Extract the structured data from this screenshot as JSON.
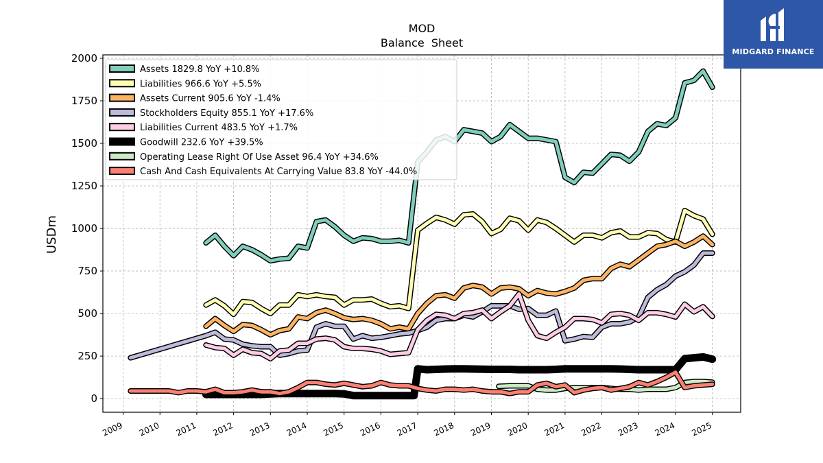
{
  "brand": {
    "name": "MIDGARD FINANCE",
    "color": "#2f57a8"
  },
  "chart_data": {
    "type": "line",
    "title": "MOD",
    "subtitle": "Balance  Sheet",
    "ylabel": "USDm",
    "xlabel": "",
    "ylim": [
      -80,
      2020
    ],
    "xlim": [
      2008.45,
      2025.77
    ],
    "yticks": [
      0,
      250,
      500,
      750,
      1000,
      1250,
      1500,
      1750,
      2000
    ],
    "ytick_labels": [
      "0",
      "250",
      "500",
      "750",
      "1000",
      "1250",
      "1500",
      "1750",
      "2000"
    ],
    "xticks": [
      2009,
      2010,
      2011,
      2012,
      2013,
      2014,
      2015,
      2016,
      2017,
      2018,
      2019,
      2020,
      2021,
      2022,
      2023,
      2024,
      2025
    ],
    "xtick_labels": [
      "2009",
      "2010",
      "2011",
      "2012",
      "2013",
      "2014",
      "2015",
      "2016",
      "2017",
      "2018",
      "2019",
      "2020",
      "2021",
      "2022",
      "2023",
      "2024",
      "2025"
    ],
    "grid": true,
    "legend_position": "top-left",
    "series": [
      {
        "name": "Assets  1829.8 YoY +10.8%",
        "color": "#7fcdbb",
        "width": 5,
        "x": [
          2011.25,
          2011.5,
          2011.75,
          2012.0,
          2012.25,
          2012.5,
          2012.75,
          2013.0,
          2013.25,
          2013.5,
          2013.75,
          2014.0,
          2014.25,
          2014.5,
          2014.75,
          2015.0,
          2015.25,
          2015.5,
          2015.75,
          2016.0,
          2016.25,
          2016.5,
          2016.75,
          2017.0,
          2017.25,
          2017.5,
          2017.75,
          2018.0,
          2018.25,
          2018.5,
          2018.75,
          2019.0,
          2019.25,
          2019.5,
          2019.75,
          2020.0,
          2020.25,
          2020.5,
          2020.75,
          2021.0,
          2021.25,
          2021.5,
          2021.75,
          2022.0,
          2022.25,
          2022.5,
          2022.75,
          2023.0,
          2023.25,
          2023.5,
          2023.75,
          2024.0,
          2024.25,
          2024.5,
          2024.75,
          2025.0
        ],
        "y": [
          915,
          960,
          895,
          840,
          895,
          875,
          845,
          810,
          820,
          825,
          895,
          885,
          1040,
          1050,
          1010,
          960,
          925,
          945,
          940,
          925,
          925,
          930,
          915,
          1390,
          1450,
          1520,
          1540,
          1510,
          1580,
          1570,
          1560,
          1510,
          1540,
          1610,
          1570,
          1530,
          1530,
          1520,
          1510,
          1300,
          1270,
          1330,
          1325,
          1380,
          1435,
          1430,
          1395,
          1450,
          1570,
          1615,
          1605,
          1650,
          1855,
          1870,
          1925,
          1830
        ]
      },
      {
        "name": "Liabilities  966.6 YoY +5.5%",
        "color": "#ffffb3",
        "width": 5,
        "x": [
          2011.25,
          2011.5,
          2011.75,
          2012.0,
          2012.25,
          2012.5,
          2012.75,
          2013.0,
          2013.25,
          2013.5,
          2013.75,
          2014.0,
          2014.25,
          2014.5,
          2014.75,
          2015.0,
          2015.25,
          2015.5,
          2015.75,
          2016.0,
          2016.25,
          2016.5,
          2016.75,
          2017.0,
          2017.25,
          2017.5,
          2017.75,
          2018.0,
          2018.25,
          2018.5,
          2018.75,
          2019.0,
          2019.25,
          2019.5,
          2019.75,
          2020.0,
          2020.25,
          2020.5,
          2020.75,
          2021.0,
          2021.25,
          2021.5,
          2021.75,
          2022.0,
          2022.25,
          2022.5,
          2022.75,
          2023.0,
          2023.25,
          2023.5,
          2023.75,
          2024.0,
          2024.25,
          2024.5,
          2024.75,
          2025.0
        ],
        "y": [
          550,
          580,
          545,
          495,
          570,
          565,
          530,
          500,
          550,
          550,
          610,
          600,
          610,
          600,
          595,
          550,
          580,
          580,
          585,
          560,
          540,
          545,
          530,
          990,
          1030,
          1065,
          1050,
          1025,
          1080,
          1085,
          1040,
          970,
          995,
          1060,
          1045,
          990,
          1050,
          1035,
          1000,
          960,
          920,
          960,
          960,
          945,
          975,
          985,
          950,
          950,
          975,
          970,
          935,
          920,
          1105,
          1075,
          1055,
          966
        ]
      },
      {
        "name": "Assets Current  905.6 YoY -1.4%",
        "color": "#fdb462",
        "width": 5,
        "x": [
          2011.25,
          2011.5,
          2011.75,
          2012.0,
          2012.25,
          2012.5,
          2012.75,
          2013.0,
          2013.25,
          2013.5,
          2013.75,
          2014.0,
          2014.25,
          2014.5,
          2014.75,
          2015.0,
          2015.25,
          2015.5,
          2015.75,
          2016.0,
          2016.25,
          2016.5,
          2016.75,
          2017.0,
          2017.25,
          2017.5,
          2017.75,
          2018.0,
          2018.25,
          2018.5,
          2018.75,
          2019.0,
          2019.25,
          2019.5,
          2019.75,
          2020.0,
          2020.25,
          2020.5,
          2020.75,
          2021.0,
          2021.25,
          2021.5,
          2021.75,
          2022.0,
          2022.25,
          2022.5,
          2022.75,
          2023.0,
          2023.25,
          2023.5,
          2023.75,
          2024.0,
          2024.25,
          2024.5,
          2024.75,
          2025.0
        ],
        "y": [
          425,
          470,
          430,
          395,
          435,
          430,
          405,
          375,
          400,
          410,
          480,
          470,
          505,
          520,
          500,
          475,
          465,
          470,
          460,
          440,
          410,
          420,
          410,
          500,
          560,
          605,
          610,
          590,
          650,
          665,
          655,
          615,
          650,
          655,
          645,
          605,
          635,
          620,
          615,
          630,
          650,
          695,
          705,
          705,
          765,
          790,
          775,
          815,
          855,
          895,
          905,
          925,
          895,
          920,
          955,
          905
        ]
      },
      {
        "name": "Stockholders Equity  855.1 YoY +17.6%",
        "color": "#bebada",
        "width": 5,
        "x": [
          2009.2,
          2011.25,
          2011.5,
          2011.75,
          2012.0,
          2012.25,
          2012.5,
          2012.75,
          2013.0,
          2013.25,
          2013.5,
          2013.75,
          2014.0,
          2014.25,
          2014.5,
          2014.75,
          2015.0,
          2015.25,
          2015.5,
          2015.75,
          2016.0,
          2016.25,
          2016.5,
          2016.75,
          2017.0,
          2017.25,
          2017.5,
          2017.75,
          2018.0,
          2018.25,
          2018.5,
          2018.75,
          2019.0,
          2019.25,
          2019.5,
          2019.75,
          2020.0,
          2020.25,
          2020.5,
          2020.75,
          2021.0,
          2021.25,
          2021.5,
          2021.75,
          2022.0,
          2022.25,
          2022.5,
          2022.75,
          2023.0,
          2023.25,
          2023.5,
          2023.75,
          2024.0,
          2024.25,
          2024.5,
          2024.75,
          2025.0
        ],
        "y": [
          240,
          370,
          390,
          350,
          345,
          320,
          310,
          305,
          305,
          255,
          265,
          280,
          285,
          420,
          440,
          425,
          425,
          350,
          370,
          355,
          360,
          370,
          380,
          385,
          400,
          420,
          460,
          470,
          470,
          490,
          480,
          510,
          545,
          545,
          545,
          525,
          530,
          490,
          490,
          515,
          340,
          350,
          365,
          360,
          420,
          440,
          440,
          450,
          480,
          595,
          640,
          670,
          720,
          745,
          785,
          855,
          855
        ]
      },
      {
        "name": "Liabilities Current  483.5 YoY +1.7%",
        "color": "#fccde5",
        "width": 5,
        "x": [
          2011.25,
          2011.5,
          2011.75,
          2012.0,
          2012.25,
          2012.5,
          2012.75,
          2013.0,
          2013.25,
          2013.5,
          2013.75,
          2014.0,
          2014.25,
          2014.5,
          2014.75,
          2015.0,
          2015.25,
          2015.5,
          2015.75,
          2016.0,
          2016.25,
          2016.5,
          2016.75,
          2017.0,
          2017.25,
          2017.5,
          2017.75,
          2018.0,
          2018.25,
          2018.5,
          2018.75,
          2019.0,
          2019.25,
          2019.5,
          2019.75,
          2020.0,
          2020.25,
          2020.5,
          2020.75,
          2021.0,
          2021.25,
          2021.5,
          2021.75,
          2022.0,
          2022.25,
          2022.5,
          2022.75,
          2023.0,
          2023.25,
          2023.5,
          2023.75,
          2024.0,
          2024.25,
          2024.5,
          2024.75,
          2025.0
        ],
        "y": [
          315,
          300,
          295,
          255,
          290,
          270,
          265,
          235,
          280,
          285,
          325,
          325,
          350,
          355,
          345,
          305,
          295,
          295,
          290,
          280,
          260,
          265,
          270,
          405,
          460,
          495,
          490,
          470,
          500,
          505,
          520,
          470,
          510,
          545,
          615,
          460,
          370,
          355,
          390,
          420,
          470,
          470,
          465,
          445,
          495,
          500,
          490,
          460,
          505,
          505,
          495,
          480,
          555,
          510,
          540,
          483
        ]
      },
      {
        "name": "Goodwill  232.6 YoY +39.5%",
        "color": "#000000",
        "width": 8,
        "x": [
          2011.25,
          2011.5,
          2011.75,
          2012.0,
          2012.25,
          2012.5,
          2012.75,
          2013.0,
          2013.25,
          2013.5,
          2013.75,
          2014.0,
          2014.25,
          2014.5,
          2014.75,
          2015.0,
          2015.25,
          2015.5,
          2015.75,
          2016.0,
          2016.25,
          2016.5,
          2016.75,
          2016.9,
          2017.0,
          2017.25,
          2017.5,
          2017.75,
          2018.0,
          2018.25,
          2018.5,
          2018.75,
          2019.0,
          2019.25,
          2019.5,
          2019.75,
          2020.0,
          2020.25,
          2020.5,
          2020.75,
          2021.0,
          2021.25,
          2021.5,
          2021.75,
          2022.0,
          2022.25,
          2022.5,
          2022.75,
          2023.0,
          2023.25,
          2023.5,
          2023.75,
          2024.0,
          2024.25,
          2024.5,
          2024.75,
          2025.0
        ],
        "y": [
          25,
          25,
          25,
          25,
          25,
          25,
          25,
          28,
          30,
          30,
          30,
          30,
          30,
          30,
          30,
          28,
          18,
          18,
          18,
          18,
          18,
          18,
          18,
          18,
          175,
          170,
          172,
          174,
          175,
          175,
          174,
          173,
          172,
          172,
          172,
          170,
          170,
          170,
          170,
          172,
          175,
          175,
          175,
          175,
          175,
          175,
          174,
          172,
          170,
          170,
          170,
          170,
          170,
          235,
          240,
          245,
          232
        ]
      },
      {
        "name": "Operating Lease Right Of Use Asset  96.4 YoY +34.6%",
        "color": "#ccebc5",
        "width": 5,
        "x": [
          2019.2,
          2019.5,
          2019.75,
          2020.0,
          2020.25,
          2020.5,
          2020.75,
          2021.0,
          2021.25,
          2021.5,
          2021.75,
          2022.0,
          2022.25,
          2022.5,
          2022.75,
          2023.0,
          2023.25,
          2023.5,
          2023.75,
          2024.0,
          2024.25,
          2024.5,
          2024.75,
          2025.0
        ],
        "y": [
          72,
          75,
          75,
          75,
          55,
          50,
          50,
          60,
          65,
          65,
          65,
          65,
          60,
          55,
          55,
          50,
          55,
          55,
          55,
          65,
          95,
          100,
          100,
          96
        ]
      },
      {
        "name": "Cash And Cash Equivalents At Carrying Value  83.8 YoY -44.0%",
        "color": "#fb8072",
        "width": 5,
        "x": [
          2009.2,
          2009.5,
          2009.75,
          2010.0,
          2010.25,
          2010.5,
          2010.75,
          2011.0,
          2011.25,
          2011.5,
          2011.75,
          2012.0,
          2012.25,
          2012.5,
          2012.75,
          2013.0,
          2013.25,
          2013.5,
          2013.75,
          2014.0,
          2014.25,
          2014.5,
          2014.75,
          2015.0,
          2015.25,
          2015.5,
          2015.75,
          2016.0,
          2016.25,
          2016.5,
          2016.75,
          2017.0,
          2017.25,
          2017.5,
          2017.75,
          2018.0,
          2018.25,
          2018.5,
          2018.75,
          2019.0,
          2019.25,
          2019.5,
          2019.75,
          2020.0,
          2020.25,
          2020.5,
          2020.75,
          2021.0,
          2021.25,
          2021.5,
          2021.75,
          2022.0,
          2022.25,
          2022.5,
          2022.75,
          2023.0,
          2023.25,
          2023.5,
          2023.75,
          2024.0,
          2024.25,
          2024.5,
          2024.75,
          2025.0
        ],
        "y": [
          45,
          45,
          45,
          45,
          45,
          35,
          45,
          45,
          40,
          55,
          35,
          35,
          40,
          50,
          40,
          40,
          30,
          40,
          65,
          95,
          95,
          85,
          80,
          90,
          80,
          70,
          75,
          95,
          80,
          75,
          75,
          60,
          50,
          45,
          55,
          55,
          50,
          55,
          45,
          40,
          40,
          30,
          40,
          40,
          80,
          90,
          70,
          80,
          35,
          50,
          60,
          65,
          50,
          60,
          70,
          95,
          80,
          100,
          125,
          155,
          65,
          75,
          80,
          84
        ]
      }
    ]
  }
}
